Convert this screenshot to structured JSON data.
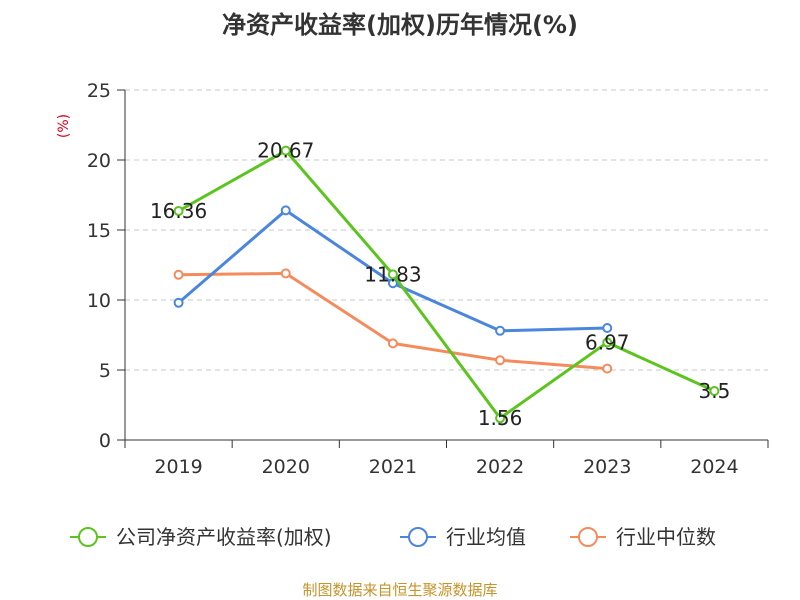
{
  "chart_data": {
    "type": "line",
    "title": "净资产收益率(加权)历年情况(%)",
    "ylabel": "(%)",
    "ylim": [
      0,
      25
    ],
    "yticks": [
      0,
      5,
      10,
      15,
      20,
      25
    ],
    "categories": [
      "2019",
      "2020",
      "2021",
      "2022",
      "2023",
      "2024"
    ],
    "grid": true,
    "legend_position": "bottom",
    "series": [
      {
        "name": "公司净资产收益率(加权)",
        "color": "#5cc41f",
        "values": [
          16.36,
          20.67,
          11.83,
          1.56,
          6.97,
          3.5
        ],
        "labels": [
          "16.36",
          "20.67",
          "11.83",
          "1.56",
          "6.97",
          "3.5"
        ]
      },
      {
        "name": "行业均值",
        "color": "#4a86de",
        "values": [
          9.8,
          16.4,
          11.2,
          7.8,
          8.0,
          null
        ]
      },
      {
        "name": "行业中位数",
        "color": "#f58b5c",
        "values": [
          11.8,
          11.9,
          6.9,
          5.7,
          5.1,
          null
        ]
      }
    ],
    "source": "制图数据来自恒生聚源数据库"
  }
}
